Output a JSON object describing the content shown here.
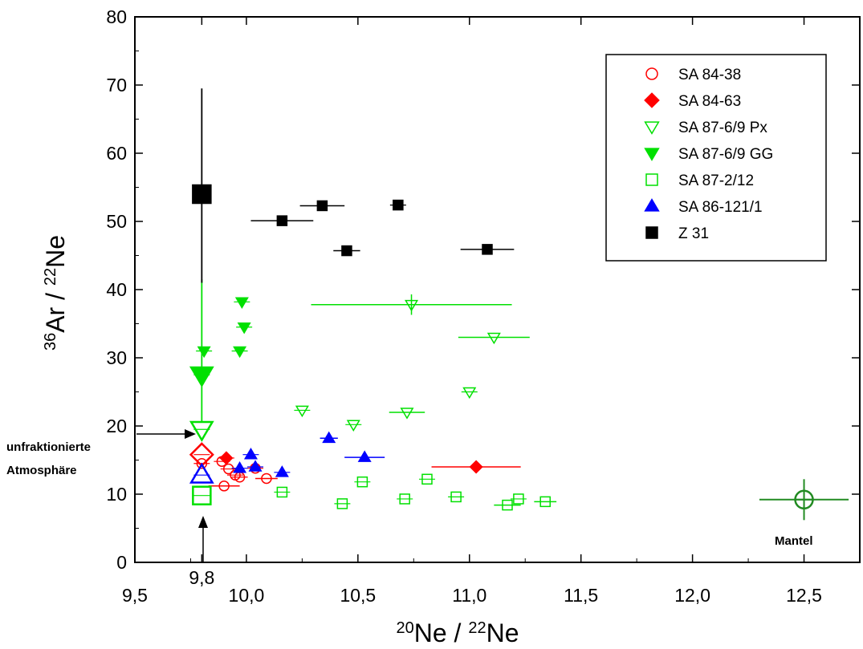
{
  "chart_data": {
    "type": "scatter",
    "xlabel_parts": [
      {
        "text": "20",
        "sup": true
      },
      {
        "text": "Ne / ",
        "sup": false
      },
      {
        "text": "22",
        "sup": true
      },
      {
        "text": "Ne",
        "sup": false
      }
    ],
    "ylabel_parts": [
      {
        "text": "36",
        "sup": true
      },
      {
        "text": "Ar / ",
        "sup": false
      },
      {
        "text": "22",
        "sup": true
      },
      {
        "text": "Ne",
        "sup": false
      }
    ],
    "xlim": [
      9.5,
      12.75
    ],
    "ylim": [
      0,
      80
    ],
    "x_ticks": [
      {
        "value": 9.5,
        "label": "9,5"
      },
      {
        "value": 9.8,
        "label": "9,8"
      },
      {
        "value": 10.0,
        "label": "10,0"
      },
      {
        "value": 10.5,
        "label": "10,5"
      },
      {
        "value": 11.0,
        "label": "11,0"
      },
      {
        "value": 11.5,
        "label": "11,5"
      },
      {
        "value": 12.0,
        "label": "12,0"
      },
      {
        "value": 12.5,
        "label": "12,5"
      }
    ],
    "y_ticks": [
      {
        "value": 0,
        "label": "0"
      },
      {
        "value": 10,
        "label": "10"
      },
      {
        "value": 20,
        "label": "20"
      },
      {
        "value": 30,
        "label": "30"
      },
      {
        "value": 40,
        "label": "40"
      },
      {
        "value": 50,
        "label": "50"
      },
      {
        "value": 60,
        "label": "60"
      },
      {
        "value": 70,
        "label": "70"
      },
      {
        "value": 80,
        "label": "80"
      }
    ],
    "grid": false,
    "legend_position": "top-right",
    "series": [
      {
        "name": "SA 84-38",
        "marker": "circle-open",
        "color": "#ff0000",
        "points": [
          {
            "x": 9.8,
            "y": 14.5
          },
          {
            "x": 9.9,
            "y": 11.2,
            "xerr": 0.07
          },
          {
            "x": 9.89,
            "y": 14.8
          },
          {
            "x": 9.92,
            "y": 13.7
          },
          {
            "x": 9.95,
            "y": 12.8
          },
          {
            "x": 9.97,
            "y": 12.5
          },
          {
            "x": 10.04,
            "y": 13.8
          },
          {
            "x": 10.09,
            "y": 12.3,
            "xerr": 0.05
          }
        ]
      },
      {
        "name": "SA 84-63",
        "marker": "diamond-filled",
        "color": "#ff0000",
        "points": [
          {
            "x": 9.8,
            "y": 15.8,
            "big": true,
            "open": true
          },
          {
            "x": 9.91,
            "y": 15.3
          },
          {
            "x": 11.03,
            "y": 14.0,
            "xerr": 0.2
          }
        ]
      },
      {
        "name": "SA 87-6/9 Px",
        "marker": "triangle-down-open",
        "color": "#00e000",
        "points": [
          {
            "x": 9.8,
            "y": 19.5,
            "big": true
          },
          {
            "x": 10.25,
            "y": 22.3
          },
          {
            "x": 10.48,
            "y": 20.2
          },
          {
            "x": 10.72,
            "y": 22.0,
            "xerr": 0.08
          },
          {
            "x": 10.74,
            "y": 37.8,
            "xerr": 0.45,
            "yerr": 1.5
          },
          {
            "x": 11.0,
            "y": 25.0
          },
          {
            "x": 11.11,
            "y": 33.0,
            "xerr": 0.16
          }
        ]
      },
      {
        "name": "SA 87-6/9 GG",
        "marker": "triangle-down-filled",
        "color": "#00e000",
        "points": [
          {
            "x": 9.8,
            "y": 27.5,
            "big": true,
            "yerr_low": 7,
            "yerr_high": 14
          },
          {
            "x": 9.81,
            "y": 31.0
          },
          {
            "x": 9.97,
            "y": 31.0
          },
          {
            "x": 9.98,
            "y": 38.2
          },
          {
            "x": 9.99,
            "y": 34.5
          }
        ]
      },
      {
        "name": "SA 87-2/12",
        "marker": "square-open",
        "color": "#00e000",
        "points": [
          {
            "x": 9.8,
            "y": 9.8,
            "big": true
          },
          {
            "x": 10.16,
            "y": 10.3
          },
          {
            "x": 10.43,
            "y": 8.6
          },
          {
            "x": 10.52,
            "y": 11.8
          },
          {
            "x": 10.71,
            "y": 9.3
          },
          {
            "x": 10.81,
            "y": 12.2
          },
          {
            "x": 10.94,
            "y": 9.6
          },
          {
            "x": 11.17,
            "y": 8.4,
            "xerr": 0.06
          },
          {
            "x": 11.22,
            "y": 9.3
          },
          {
            "x": 11.34,
            "y": 8.9,
            "xerr": 0.05
          }
        ]
      },
      {
        "name": "SA 86-121/1",
        "marker": "triangle-up-filled",
        "color": "#0000ff",
        "points": [
          {
            "x": 9.8,
            "y": 12.8,
            "big": true,
            "open": true
          },
          {
            "x": 9.97,
            "y": 13.8
          },
          {
            "x": 10.02,
            "y": 15.8
          },
          {
            "x": 10.04,
            "y": 14.0
          },
          {
            "x": 10.16,
            "y": 13.2
          },
          {
            "x": 10.37,
            "y": 18.2,
            "xerr": 0.04
          },
          {
            "x": 10.53,
            "y": 15.4,
            "xerr": 0.09
          }
        ]
      },
      {
        "name": "Z 31",
        "marker": "square-filled",
        "color": "#000000",
        "points": [
          {
            "x": 9.8,
            "y": 54.0,
            "big": true,
            "yerr_low": 13,
            "yerr_high": 15.5
          },
          {
            "x": 10.16,
            "y": 50.1,
            "xerr": 0.14
          },
          {
            "x": 10.34,
            "y": 52.3,
            "xerr": 0.1
          },
          {
            "x": 10.45,
            "y": 45.7,
            "xerr": 0.06
          },
          {
            "x": 10.68,
            "y": 52.4
          },
          {
            "x": 11.08,
            "y": 45.9,
            "xerr": 0.12
          }
        ]
      }
    ],
    "extra_points": [
      {
        "x": 12.5,
        "y": 9.2,
        "xerr": 0.2,
        "yerr": 3,
        "marker": "circle-cross",
        "color": "#228B22"
      }
    ],
    "annotations": [
      {
        "text": "unfraktionierte",
        "color": "#000000"
      },
      {
        "text": "Atmosphäre",
        "color": "#000000"
      },
      {
        "text": "Mantel",
        "color": "#000000"
      }
    ]
  }
}
